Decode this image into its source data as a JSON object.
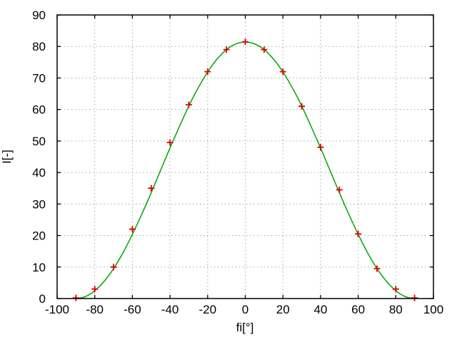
{
  "chart_data": {
    "type": "line",
    "title": "",
    "xlabel": "fi[°]",
    "ylabel": "I[-]",
    "xlim": [
      -100,
      100
    ],
    "ylim": [
      0,
      90
    ],
    "xticks": [
      -100,
      -80,
      -60,
      -40,
      -20,
      0,
      20,
      40,
      60,
      80,
      100
    ],
    "yticks": [
      0,
      10,
      20,
      30,
      40,
      50,
      60,
      70,
      80,
      90
    ],
    "grid": true,
    "legend": "none",
    "series": [
      {
        "name": "fitted-curve",
        "type": "line",
        "color": "#00a400",
        "x": [
          -90,
          -85,
          -80,
          -75,
          -70,
          -65,
          -60,
          -55,
          -50,
          -45,
          -40,
          -35,
          -30,
          -25,
          -20,
          -15,
          -10,
          -5,
          0,
          5,
          10,
          15,
          20,
          25,
          30,
          35,
          40,
          45,
          50,
          55,
          60,
          65,
          70,
          75,
          80,
          85,
          90
        ],
        "y": [
          0,
          0.6,
          2.5,
          5.5,
          9.5,
          14.5,
          20.4,
          26.8,
          33.6,
          40.7,
          47.8,
          54.6,
          61.1,
          66.9,
          71.9,
          76,
          79,
          80.8,
          81.4,
          80.8,
          79,
          76,
          71.9,
          66.9,
          61.1,
          54.6,
          47.8,
          40.7,
          33.6,
          26.8,
          20.4,
          14.5,
          9.5,
          5.5,
          2.5,
          0.6,
          0
        ]
      },
      {
        "name": "measured-points",
        "type": "scatter",
        "marker": "plus",
        "color": "#e00000",
        "x": [
          -90,
          -80,
          -70,
          -60,
          -50,
          -40,
          -30,
          -20,
          -10,
          0,
          10,
          20,
          30,
          40,
          50,
          60,
          70,
          80,
          90
        ],
        "y": [
          0.2,
          3,
          10,
          22,
          35,
          49.5,
          61.5,
          72,
          79,
          81.5,
          79,
          72,
          61,
          48,
          34.5,
          20.5,
          9.5,
          3,
          0.2
        ]
      }
    ],
    "colors": {
      "curve": "#00a400",
      "marker": "#e00000",
      "grid": "#a8a8a8",
      "axis": "#000000",
      "background": "#ffffff"
    }
  }
}
